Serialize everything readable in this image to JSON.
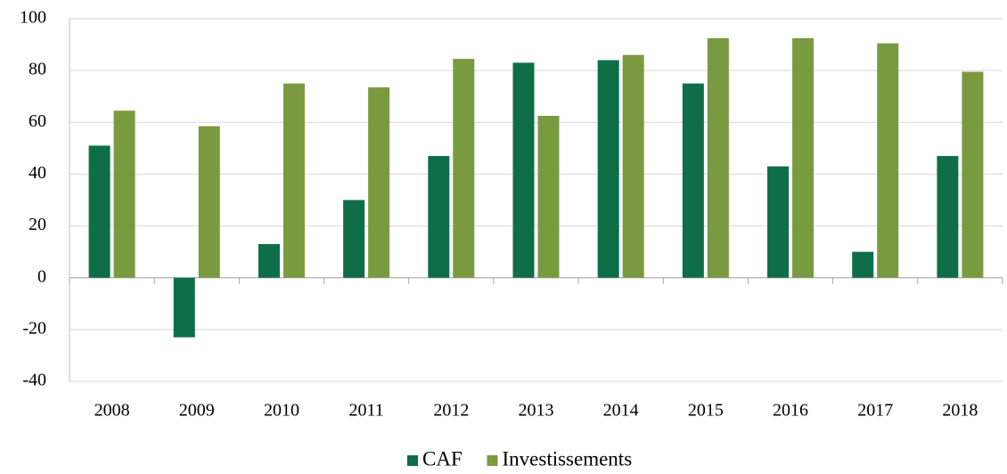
{
  "chart_data": {
    "type": "bar",
    "categories": [
      "2008",
      "2009",
      "2010",
      "2011",
      "2012",
      "2013",
      "2014",
      "2015",
      "2016",
      "2017",
      "2018"
    ],
    "series": [
      {
        "name": "CAF",
        "color": "#0e6e47",
        "values": [
          51,
          -23,
          13,
          30,
          47,
          83,
          84,
          75,
          43,
          10,
          47
        ]
      },
      {
        "name": "Investissements",
        "color": "#7a9a3f",
        "values": [
          64.5,
          58.5,
          75,
          73.5,
          84.5,
          62.5,
          86,
          92.5,
          92.5,
          90.5,
          79.5
        ]
      }
    ],
    "ylim": [
      -40,
      100
    ],
    "yticks": [
      -40,
      -20,
      0,
      20,
      40,
      60,
      80,
      100
    ],
    "grid": true,
    "legend": "bottom"
  }
}
